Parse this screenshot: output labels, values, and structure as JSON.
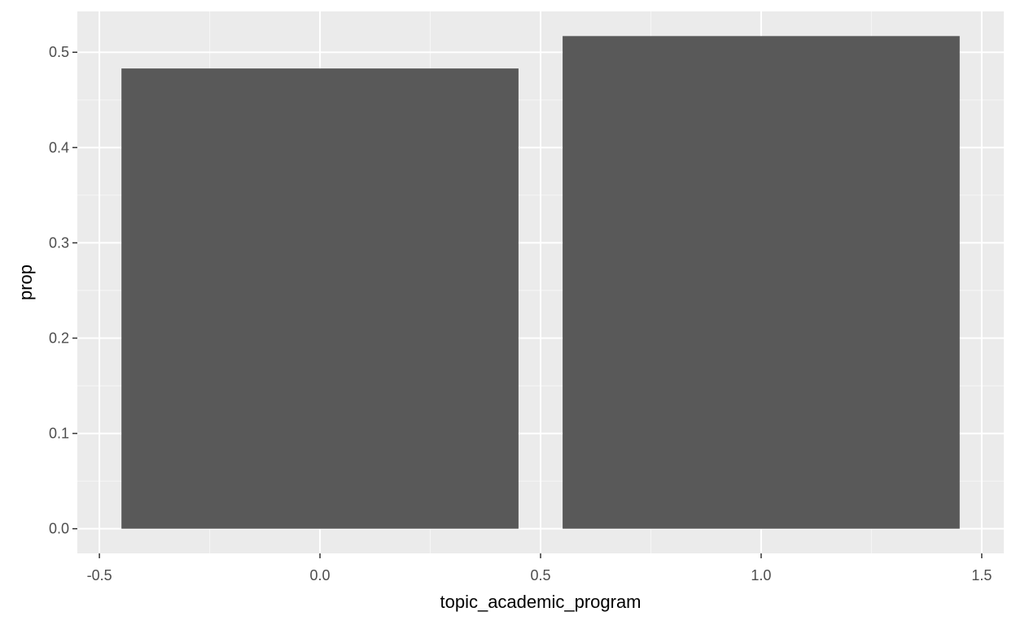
{
  "chart_data": {
    "type": "bar",
    "title": "",
    "xlabel": "topic_academic_program",
    "ylabel": "prop",
    "x": [
      0,
      1
    ],
    "values": [
      0.483,
      0.517
    ],
    "bar_width": 0.9,
    "xlim": [
      -0.55,
      1.55
    ],
    "ylim": [
      -0.0259,
      0.5429
    ],
    "x_ticks": [
      -0.5,
      0.0,
      0.5,
      1.0,
      1.5
    ],
    "x_tick_labels": [
      "-0.5",
      "0.0",
      "0.5",
      "1.0",
      "1.5"
    ],
    "y_ticks": [
      0.0,
      0.1,
      0.2,
      0.3,
      0.4,
      0.5
    ],
    "y_tick_labels": [
      "0.0",
      "0.1",
      "0.2",
      "0.3",
      "0.4",
      "0.5"
    ],
    "grid": true,
    "legend": "none",
    "colors": {
      "panel_background": "#ebebeb",
      "grid_major": "#ffffff",
      "grid_minor": "#f5f5f5",
      "bar_fill": "#595959",
      "tick_color": "#333333",
      "tick_label_color": "#4d4d4d"
    }
  }
}
